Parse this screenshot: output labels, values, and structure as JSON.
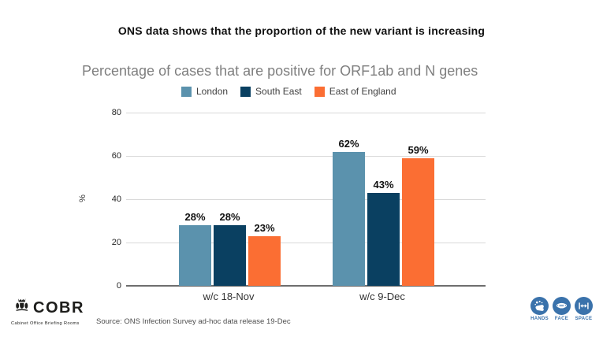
{
  "header": {
    "title": "ONS data shows that the proportion of the new variant is increasing"
  },
  "chart_data": {
    "type": "bar",
    "title": "Percentage of cases that are positive for ORF1ab and N genes",
    "ylabel": "%",
    "categories": [
      "w/c 18-Nov",
      "w/c 9-Dec"
    ],
    "series": [
      {
        "name": "London",
        "color": "#5b92ad",
        "values": [
          28,
          62
        ]
      },
      {
        "name": "South East",
        "color": "#0a4061",
        "values": [
          28,
          43
        ]
      },
      {
        "name": "East of England",
        "color": "#fb6e33",
        "values": [
          23,
          59
        ]
      }
    ],
    "value_label_format": "{v}%",
    "yticks": [
      0,
      20,
      40,
      60,
      80
    ],
    "ylim": [
      0,
      80
    ],
    "grid": true,
    "legend_position": "top",
    "gridline_color": "#d9d9d9",
    "axis_color": "#6e6e6e"
  },
  "footer": {
    "source": "Source: ONS Infection Survey ad-hoc data release 19-Dec",
    "cobr": {
      "title": "COBR",
      "subtitle": "Cabinet Office Briefing Rooms",
      "crest_icon": "royal-crest-icon"
    },
    "campaign": {
      "accent": "#3a72ab",
      "items": [
        {
          "label": "HANDS",
          "icon": "hands-washing-icon"
        },
        {
          "label": "FACE",
          "icon": "face-mask-icon"
        },
        {
          "label": "SPACE",
          "icon": "distance-arrows-icon"
        }
      ]
    }
  }
}
